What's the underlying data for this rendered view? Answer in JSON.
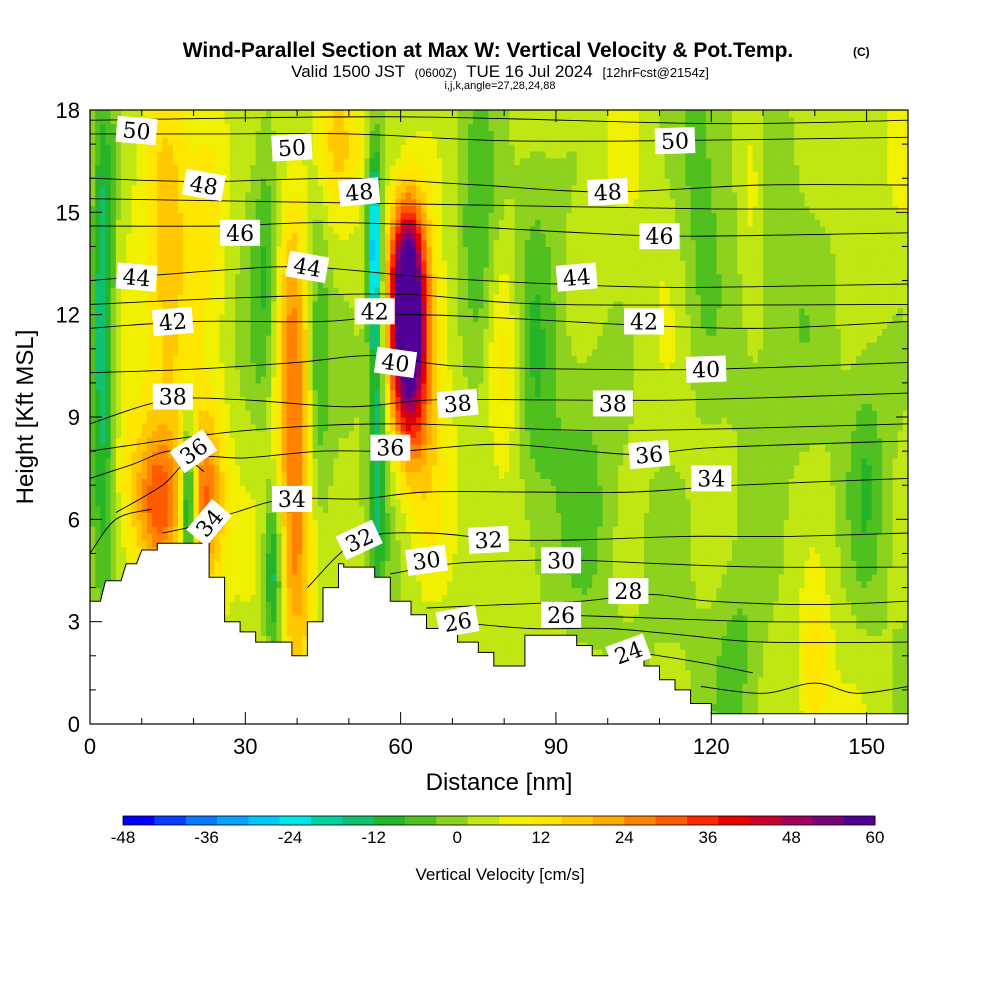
{
  "header": {
    "title": "Wind-Parallel Section at Max W: Vertical Velocity & Pot.Temp.",
    "copyright": "(C)",
    "valid_prefix": "Valid 1500 JST",
    "valid_utc": "(0600Z)",
    "valid_date": "TUE 16 Jul 2024",
    "forecast": "[12hrFcst@2154z]",
    "indices": "i,j,k,angle=27,28,24,88"
  },
  "chart_data": {
    "type": "heatmap",
    "xlabel": "Distance [nm]",
    "ylabel": "Height [Kft MSL]",
    "xlim": [
      0,
      158
    ],
    "ylim": [
      0,
      18
    ],
    "x_ticks": [
      0,
      30,
      60,
      90,
      120,
      150
    ],
    "y_ticks": [
      0,
      3,
      6,
      9,
      12,
      15,
      18
    ],
    "colorbar": {
      "label": "Vertical Velocity [cm/s]",
      "ticks": [
        -48,
        -36,
        -24,
        -12,
        0,
        12,
        24,
        36,
        48,
        60
      ],
      "range": [
        -48,
        60
      ],
      "colors": [
        "#0000ff",
        "#0a3cff",
        "#0a78ff",
        "#0aa0ff",
        "#00c8ff",
        "#00e6e6",
        "#00d2a0",
        "#10c070",
        "#28b428",
        "#50c020",
        "#8cd21e",
        "#c0e614",
        "#f0f000",
        "#ffe600",
        "#ffc800",
        "#ffaa00",
        "#ff8200",
        "#ff5a00",
        "#ff2800",
        "#e60000",
        "#c8002d",
        "#a0005a",
        "#780078",
        "#500096"
      ]
    },
    "terrain_kft": [
      [
        0,
        3.6
      ],
      [
        2,
        3.6
      ],
      [
        3,
        4.2
      ],
      [
        6,
        4.2
      ],
      [
        7,
        4.7
      ],
      [
        9,
        4.7
      ],
      [
        10,
        5.1
      ],
      [
        13,
        5.1
      ],
      [
        13,
        5.3
      ],
      [
        23,
        5.3
      ],
      [
        23,
        4.3
      ],
      [
        26,
        4.3
      ],
      [
        26,
        3.0
      ],
      [
        29,
        3.0
      ],
      [
        29,
        2.7
      ],
      [
        32,
        2.7
      ],
      [
        32,
        2.4
      ],
      [
        39,
        2.4
      ],
      [
        39,
        2.0
      ],
      [
        42,
        2.0
      ],
      [
        42,
        3.0
      ],
      [
        45,
        3.0
      ],
      [
        45,
        4.0
      ],
      [
        48,
        4.0
      ],
      [
        48,
        4.7
      ],
      [
        49,
        4.7
      ],
      [
        49,
        4.6
      ],
      [
        55,
        4.6
      ],
      [
        55,
        4.3
      ],
      [
        58,
        4.3
      ],
      [
        58,
        3.6
      ],
      [
        62,
        3.6
      ],
      [
        62,
        3.2
      ],
      [
        65,
        3.2
      ],
      [
        65,
        2.8
      ],
      [
        71,
        2.8
      ],
      [
        71,
        2.4
      ],
      [
        75,
        2.4
      ],
      [
        75,
        2.1
      ],
      [
        78,
        2.1
      ],
      [
        78,
        1.7
      ],
      [
        84,
        1.7
      ],
      [
        84,
        2.6
      ],
      [
        94,
        2.6
      ],
      [
        94,
        2.3
      ],
      [
        97,
        2.3
      ],
      [
        97,
        2.0
      ],
      [
        107,
        2.0
      ],
      [
        107,
        1.7
      ],
      [
        110,
        1.7
      ],
      [
        110,
        1.3
      ],
      [
        113,
        1.3
      ],
      [
        113,
        1.0
      ],
      [
        116,
        1.0
      ],
      [
        116,
        0.6
      ],
      [
        120,
        0.6
      ],
      [
        120,
        0.3
      ],
      [
        158,
        0.3
      ]
    ],
    "w_features": [
      {
        "x": 61.5,
        "z": 11.5,
        "sx": 2.4,
        "sz": 2.2,
        "w": 64
      },
      {
        "x": 61.0,
        "z": 13.5,
        "sx": 2.2,
        "sz": 1.4,
        "w": 20
      },
      {
        "x": 55.0,
        "z": 14.0,
        "sx": 1.0,
        "sz": 2.0,
        "w": -34
      },
      {
        "x": 55.5,
        "z": 8.0,
        "sx": 1.2,
        "sz": 3.0,
        "w": -18
      },
      {
        "x": 65.0,
        "z": 9.5,
        "sx": 3.0,
        "sz": 4.0,
        "w": 10
      },
      {
        "x": 2.5,
        "z": 12.0,
        "sx": 1.6,
        "sz": 4.5,
        "w": -22
      },
      {
        "x": 19.0,
        "z": 6.5,
        "sx": 1.0,
        "sz": 1.8,
        "w": -30
      },
      {
        "x": 13.0,
        "z": 6.5,
        "sx": 3.0,
        "sz": 1.5,
        "w": 22
      },
      {
        "x": 22.5,
        "z": 6.5,
        "sx": 2.5,
        "sz": 1.8,
        "w": 26
      },
      {
        "x": 15.0,
        "z": 13.5,
        "sx": 3.5,
        "sz": 5.0,
        "w": 14
      },
      {
        "x": 23.0,
        "z": 16.0,
        "sx": 3.0,
        "sz": 2.5,
        "w": 12
      },
      {
        "x": 39.0,
        "z": 10.5,
        "sx": 2.5,
        "sz": 3.5,
        "w": 24
      },
      {
        "x": 40.0,
        "z": 5.0,
        "sx": 2.5,
        "sz": 2.5,
        "w": 18
      },
      {
        "x": 35.5,
        "z": 4.5,
        "sx": 1.3,
        "sz": 1.8,
        "w": -22
      },
      {
        "x": 34.0,
        "z": 13.5,
        "sx": 2.0,
        "sz": 3.0,
        "w": -10
      },
      {
        "x": 44.0,
        "z": 11.0,
        "sx": 1.5,
        "sz": 3.0,
        "w": -12
      },
      {
        "x": 47.5,
        "z": 17.0,
        "sx": 3.0,
        "sz": 1.5,
        "w": 10
      },
      {
        "x": 75.0,
        "z": 13.0,
        "sx": 2.5,
        "sz": 3.0,
        "w": -10
      },
      {
        "x": 80.0,
        "z": 11.0,
        "sx": 2.5,
        "sz": 2.5,
        "w": 10
      },
      {
        "x": 86.0,
        "z": 10.0,
        "sx": 3.0,
        "sz": 5.0,
        "w": -8
      },
      {
        "x": 128.0,
        "z": 16.0,
        "sx": 2.0,
        "sz": 2.5,
        "w": 10
      },
      {
        "x": 118.0,
        "z": 15.0,
        "sx": 3.0,
        "sz": 4.0,
        "w": -8
      },
      {
        "x": 140.0,
        "z": 1.5,
        "sx": 2.0,
        "sz": 1.5,
        "w": 12
      },
      {
        "x": 125.0,
        "z": 2.0,
        "sx": 3.0,
        "sz": 2.0,
        "w": -6
      },
      {
        "x": 150.0,
        "z": 7.0,
        "sx": 2.5,
        "sz": 2.5,
        "w": -8
      },
      {
        "x": 95.0,
        "z": 6.0,
        "sx": 4.0,
        "sz": 3.0,
        "w": -6
      },
      {
        "x": 130.0,
        "z": 10.0,
        "sx": 6.0,
        "sz": 6.0,
        "w": -5
      },
      {
        "x": 7.0,
        "z": 7.0,
        "sx": 2.5,
        "sz": 2.0,
        "w": 8
      }
    ],
    "theta_contours": [
      {
        "label": "24",
        "points": [
          [
            100,
            2.2
          ],
          [
            110,
            2.0
          ],
          [
            118,
            1.8
          ],
          [
            128,
            1.5
          ]
        ]
      },
      {
        "label": "26",
        "points": [
          [
            70,
            3.0
          ],
          [
            85,
            2.8
          ],
          [
            100,
            2.8
          ],
          [
            115,
            2.6
          ],
          [
            130,
            2.4
          ],
          [
            158,
            2.4
          ]
        ]
      },
      {
        "label": "28",
        "points": [
          [
            65,
            3.4
          ],
          [
            80,
            3.5
          ],
          [
            95,
            3.6
          ],
          [
            108,
            3.8
          ],
          [
            120,
            3.6
          ],
          [
            140,
            3.5
          ],
          [
            158,
            3.6
          ]
        ]
      },
      {
        "label": "30",
        "points": [
          [
            58,
            4.4
          ],
          [
            70,
            4.7
          ],
          [
            85,
            4.8
          ],
          [
            95,
            4.8
          ],
          [
            110,
            4.7
          ],
          [
            130,
            4.6
          ],
          [
            158,
            4.6
          ]
        ]
      },
      {
        "label": "32",
        "points": [
          [
            42,
            4.0
          ],
          [
            52,
            5.4
          ],
          [
            65,
            5.6
          ],
          [
            80,
            5.4
          ],
          [
            95,
            5.4
          ],
          [
            115,
            5.5
          ],
          [
            135,
            5.5
          ],
          [
            158,
            5.6
          ]
        ]
      },
      {
        "label": "34",
        "points": [
          [
            14,
            5.6
          ],
          [
            20,
            5.8
          ],
          [
            28,
            6.2
          ],
          [
            38,
            6.6
          ],
          [
            52,
            6.6
          ],
          [
            65,
            6.8
          ],
          [
            85,
            6.8
          ],
          [
            105,
            6.8
          ],
          [
            125,
            7.0
          ],
          [
            158,
            7.2
          ]
        ]
      },
      {
        "label": "36",
        "points": [
          [
            5,
            6.2
          ],
          [
            14,
            7.0
          ],
          [
            20,
            7.8
          ],
          [
            30,
            7.8
          ],
          [
            45,
            8.0
          ],
          [
            60,
            8.0
          ],
          [
            80,
            8.2
          ],
          [
            105,
            7.9
          ],
          [
            120,
            8.1
          ],
          [
            158,
            8.3
          ]
        ]
      },
      {
        "label": "38",
        "points": [
          [
            0,
            8.8
          ],
          [
            15,
            9.5
          ],
          [
            30,
            9.5
          ],
          [
            50,
            9.3
          ],
          [
            66,
            9.5
          ],
          [
            90,
            9.5
          ],
          [
            115,
            9.5
          ],
          [
            158,
            9.7
          ]
        ]
      },
      {
        "label": "40",
        "points": [
          [
            0,
            10.3
          ],
          [
            20,
            10.4
          ],
          [
            40,
            10.6
          ],
          [
            55,
            10.8
          ],
          [
            70,
            10.5
          ],
          [
            95,
            10.4
          ],
          [
            120,
            10.4
          ],
          [
            158,
            10.6
          ]
        ]
      },
      {
        "label": "42",
        "points": [
          [
            0,
            11.6
          ],
          [
            20,
            11.8
          ],
          [
            45,
            11.8
          ],
          [
            60,
            12.0
          ],
          [
            80,
            11.9
          ],
          [
            105,
            11.7
          ],
          [
            130,
            11.6
          ],
          [
            158,
            11.8
          ]
        ]
      },
      {
        "label": "44",
        "points": [
          [
            0,
            13.0
          ],
          [
            25,
            13.3
          ],
          [
            42,
            13.4
          ],
          [
            65,
            13.1
          ],
          [
            90,
            12.9
          ],
          [
            115,
            12.8
          ],
          [
            158,
            12.9
          ]
        ]
      },
      {
        "label": "46",
        "points": [
          [
            0,
            14.6
          ],
          [
            25,
            14.6
          ],
          [
            45,
            14.7
          ],
          [
            70,
            14.6
          ],
          [
            95,
            14.4
          ],
          [
            115,
            14.3
          ],
          [
            158,
            14.4
          ]
        ]
      },
      {
        "label": "48",
        "points": [
          [
            0,
            16.0
          ],
          [
            22,
            15.9
          ],
          [
            50,
            16.0
          ],
          [
            75,
            15.8
          ],
          [
            100,
            15.6
          ],
          [
            130,
            15.8
          ],
          [
            158,
            15.8
          ]
        ]
      },
      {
        "label": "50",
        "points": [
          [
            0,
            17.3
          ],
          [
            25,
            17.3
          ],
          [
            50,
            17.3
          ],
          [
            80,
            17.1
          ],
          [
            110,
            17.1
          ],
          [
            158,
            17.2
          ]
        ]
      },
      {
        "label": "",
        "points": [
          [
            0,
            5.0
          ],
          [
            5,
            6.0
          ],
          [
            12,
            6.3
          ]
        ]
      },
      {
        "label": "",
        "points": [
          [
            0,
            7.2
          ],
          [
            8,
            7.6
          ],
          [
            16,
            8.0
          ],
          [
            22,
            7.4
          ]
        ]
      },
      {
        "label": "",
        "points": [
          [
            0,
            12.3
          ],
          [
            30,
            12.5
          ],
          [
            60,
            12.6
          ],
          [
            90,
            12.3
          ],
          [
            158,
            12.3
          ]
        ]
      },
      {
        "label": "",
        "points": [
          [
            0,
            15.4
          ],
          [
            40,
            15.3
          ],
          [
            80,
            15.2
          ],
          [
            120,
            15.1
          ],
          [
            158,
            15.1
          ]
        ]
      },
      {
        "label": "",
        "points": [
          [
            0,
            17.7
          ],
          [
            60,
            17.8
          ],
          [
            120,
            17.6
          ],
          [
            158,
            17.7
          ]
        ]
      },
      {
        "label": "",
        "points": [
          [
            0,
            8.0
          ],
          [
            30,
            8.6
          ],
          [
            60,
            8.8
          ],
          [
            100,
            8.6
          ],
          [
            158,
            8.8
          ]
        ]
      },
      {
        "label": "",
        "points": [
          [
            90,
            3.2
          ],
          [
            110,
            3.1
          ],
          [
            130,
            3.0
          ],
          [
            158,
            3.0
          ]
        ]
      },
      {
        "label": "",
        "points": [
          [
            118,
            1.1
          ],
          [
            130,
            0.9
          ],
          [
            140,
            1.2
          ],
          [
            148,
            0.9
          ],
          [
            158,
            1.1
          ]
        ]
      }
    ],
    "contour_labels": [
      {
        "text": "50",
        "x": 9,
        "z": 17.4,
        "angle": 5
      },
      {
        "text": "50",
        "x": 39,
        "z": 16.9,
        "angle": -3
      },
      {
        "text": "50",
        "x": 113,
        "z": 17.1,
        "angle": -2
      },
      {
        "text": "48",
        "x": 22,
        "z": 15.8,
        "angle": 10
      },
      {
        "text": "48",
        "x": 52,
        "z": 15.6,
        "angle": -5
      },
      {
        "text": "48",
        "x": 100,
        "z": 15.6,
        "angle": -3
      },
      {
        "text": "46",
        "x": 29,
        "z": 14.4,
        "angle": 0
      },
      {
        "text": "46",
        "x": 110,
        "z": 14.3,
        "angle": 0
      },
      {
        "text": "44",
        "x": 9,
        "z": 13.1,
        "angle": 5
      },
      {
        "text": "44",
        "x": 42,
        "z": 13.4,
        "angle": 10
      },
      {
        "text": "44",
        "x": 94,
        "z": 13.1,
        "angle": -5
      },
      {
        "text": "42",
        "x": 16,
        "z": 11.8,
        "angle": -5
      },
      {
        "text": "42",
        "x": 55,
        "z": 12.1,
        "angle": 0
      },
      {
        "text": "42",
        "x": 107,
        "z": 11.8,
        "angle": 0
      },
      {
        "text": "40",
        "x": 59,
        "z": 10.6,
        "angle": 8
      },
      {
        "text": "40",
        "x": 119,
        "z": 10.4,
        "angle": -2
      },
      {
        "text": "38",
        "x": 16,
        "z": 9.6,
        "angle": 0
      },
      {
        "text": "38",
        "x": 71,
        "z": 9.4,
        "angle": -5
      },
      {
        "text": "38",
        "x": 101,
        "z": 9.4,
        "angle": 0
      },
      {
        "text": "36",
        "x": 20,
        "z": 8.0,
        "angle": -35
      },
      {
        "text": "36",
        "x": 58,
        "z": 8.1,
        "angle": 0
      },
      {
        "text": "36",
        "x": 108,
        "z": 7.9,
        "angle": -5
      },
      {
        "text": "34",
        "x": 23,
        "z": 5.9,
        "angle": -50
      },
      {
        "text": "34",
        "x": 39,
        "z": 6.6,
        "angle": 0
      },
      {
        "text": "34",
        "x": 120,
        "z": 7.2,
        "angle": 0
      },
      {
        "text": "32",
        "x": 52,
        "z": 5.4,
        "angle": -25
      },
      {
        "text": "32",
        "x": 77,
        "z": 5.4,
        "angle": -3
      },
      {
        "text": "30",
        "x": 65,
        "z": 4.8,
        "angle": -8
      },
      {
        "text": "30",
        "x": 91,
        "z": 4.8,
        "angle": 0
      },
      {
        "text": "28",
        "x": 104,
        "z": 3.9,
        "angle": 0
      },
      {
        "text": "26",
        "x": 71,
        "z": 3.0,
        "angle": -10
      },
      {
        "text": "26",
        "x": 91,
        "z": 3.2,
        "angle": 0
      },
      {
        "text": "24",
        "x": 104,
        "z": 2.1,
        "angle": -20
      }
    ]
  }
}
